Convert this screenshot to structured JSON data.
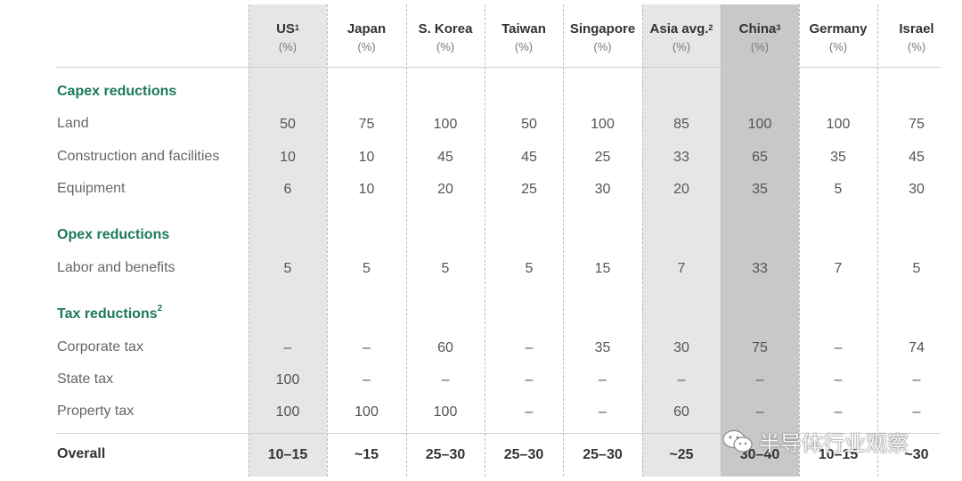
{
  "columns": [
    {
      "name": "US",
      "sup": "1",
      "unit": "(%)"
    },
    {
      "name": "Japan",
      "sup": "",
      "unit": "(%)"
    },
    {
      "name": "S. Korea",
      "sup": "",
      "unit": "(%)"
    },
    {
      "name": "Taiwan",
      "sup": "",
      "unit": "(%)"
    },
    {
      "name": "Singapore",
      "sup": "",
      "unit": "(%)"
    },
    {
      "name": "Asia avg.",
      "sup": "2",
      "unit": "(%)"
    },
    {
      "name": "China",
      "sup": "3",
      "unit": "(%)"
    },
    {
      "name": "Germany",
      "sup": "",
      "unit": "(%)"
    },
    {
      "name": "Israel",
      "sup": "",
      "unit": "(%)"
    }
  ],
  "sections": [
    {
      "title": "Capex reductions",
      "sup": ""
    },
    {
      "title": "Opex reductions",
      "sup": ""
    },
    {
      "title": "Tax reductions",
      "sup": "2"
    }
  ],
  "rows": [
    {
      "label": "Land",
      "values": [
        "50",
        "75",
        "100",
        "50",
        "100",
        "85",
        "100",
        "100",
        "75"
      ]
    },
    {
      "label": "Construction and facilities",
      "values": [
        "10",
        "10",
        "45",
        "45",
        "25",
        "33",
        "65",
        "35",
        "45"
      ]
    },
    {
      "label": "Equipment",
      "values": [
        "6",
        "10",
        "20",
        "25",
        "30",
        "20",
        "35",
        "5",
        "30"
      ]
    },
    {
      "label": "Labor and benefits",
      "values": [
        "5",
        "5",
        "5",
        "5",
        "15",
        "7",
        "33",
        "7",
        "5"
      ]
    },
    {
      "label": "Corporate tax",
      "values": [
        "–",
        "–",
        "60",
        "–",
        "35",
        "30",
        "75",
        "–",
        "74"
      ]
    },
    {
      "label": "State tax",
      "values": [
        "100",
        "–",
        "–",
        "–",
        "–",
        "–",
        "–",
        "–",
        "–"
      ]
    },
    {
      "label": "Property tax",
      "values": [
        "100",
        "100",
        "100",
        "–",
        "–",
        "60",
        "–",
        "–",
        "–"
      ]
    }
  ],
  "overall": {
    "label": "Overall",
    "values": [
      "10–15",
      "~15",
      "25–30",
      "25–30",
      "25–30",
      "~25",
      "30–40",
      "10–15",
      "~30"
    ]
  },
  "watermark": {
    "text": "半导体行业观察",
    "icon": "wechat-icon"
  },
  "colors": {
    "section_green": "#1c7a55",
    "highlight_light": "#e6e6e6",
    "highlight_dark": "#c8c8c8"
  }
}
